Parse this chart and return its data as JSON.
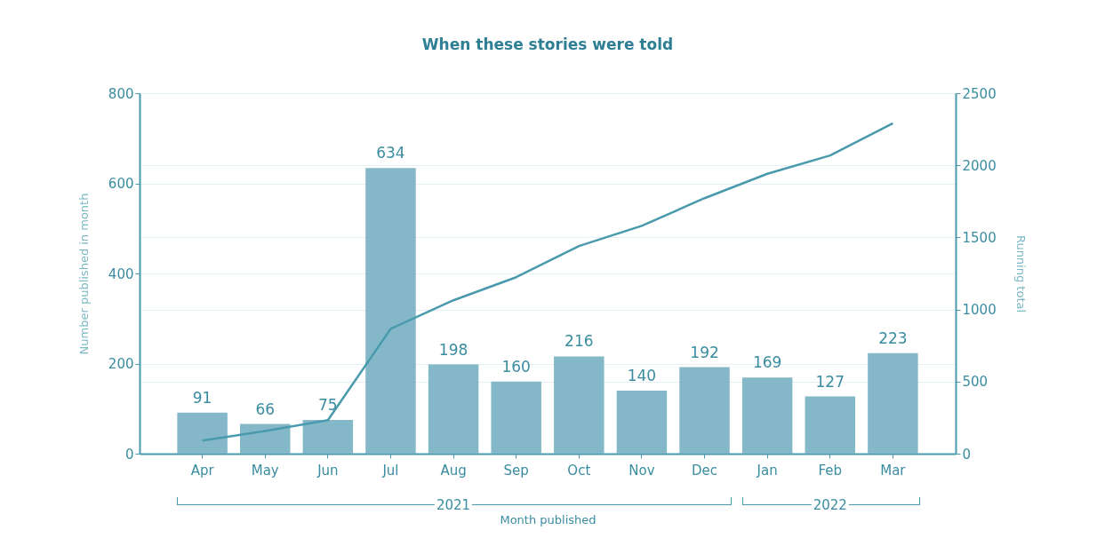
{
  "chart_data": {
    "type": "bar",
    "title": "When these stories were told",
    "xlabel": "Month published",
    "ylabel": "Number published in month",
    "y2label": "Running total",
    "categories": [
      "Apr",
      "May",
      "Jun",
      "Jul",
      "Aug",
      "Sep",
      "Oct",
      "Nov",
      "Dec",
      "Jan",
      "Feb",
      "Mar"
    ],
    "series": [
      {
        "color": "#84b8c8",
        "values": [
          91,
          66,
          75,
          634,
          198,
          160,
          216,
          140,
          192,
          169,
          127,
          223
        ],
        "value_labels": [
          "91",
          "66",
          "75",
          "634",
          "198",
          "160",
          "216",
          "140",
          "192",
          "169",
          "127",
          "223"
        ]
      },
      {
        "type": "line",
        "axis": "y2",
        "color": "#4a9aad",
        "values": [
          91,
          157,
          232,
          866,
          1064,
          1224,
          1440,
          1580,
          1772,
          1941,
          2068,
          2291
        ]
      }
    ],
    "ylim": [
      0,
      800
    ],
    "yticks": [
      0,
      200,
      400,
      600,
      800
    ],
    "y2lim": [
      0,
      2500
    ],
    "y2ticks": [
      0,
      500,
      1000,
      1500,
      2000,
      2500
    ],
    "grid": true,
    "annotations": [
      "2021",
      "2022"
    ]
  }
}
